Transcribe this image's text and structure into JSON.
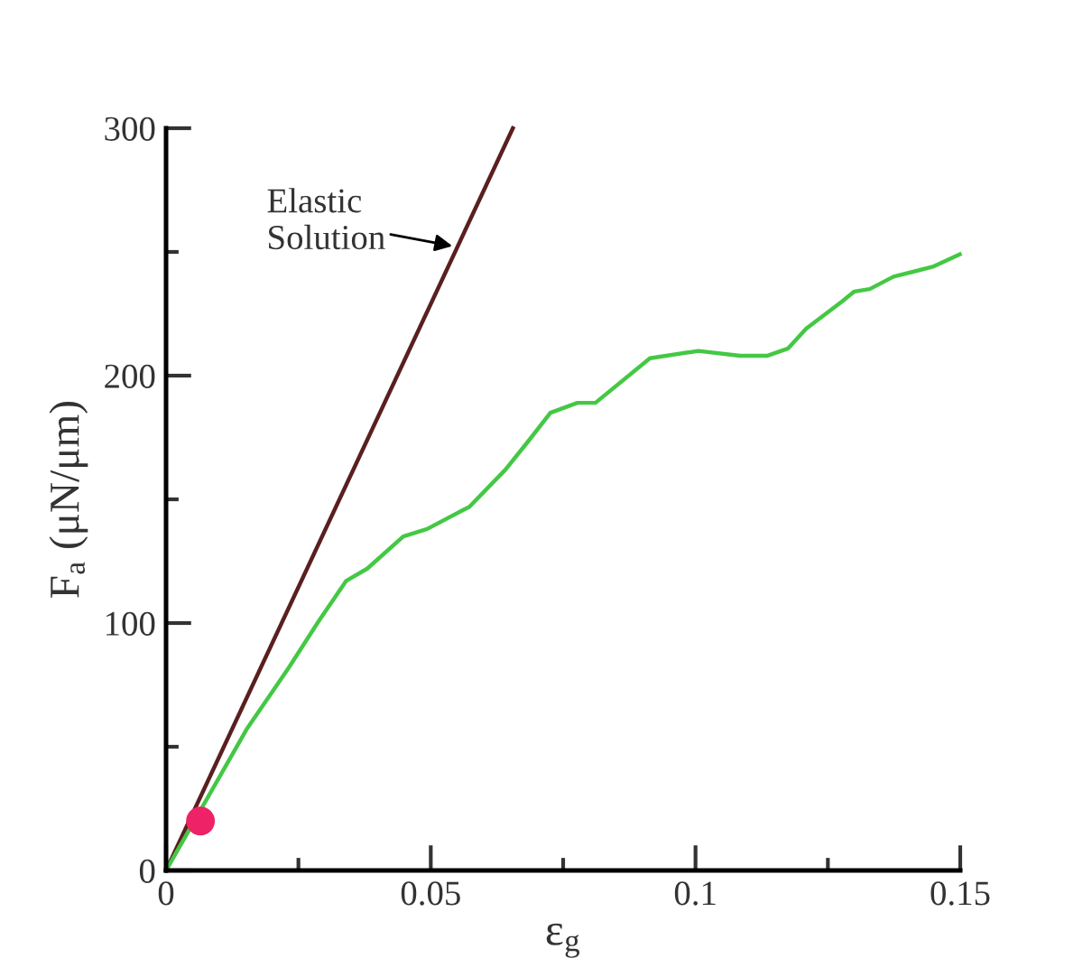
{
  "chart_data": {
    "type": "line",
    "xlabel": "ε$_{g}$",
    "ylabel": "F$_{a}$ (μN/μm)",
    "xlim": [
      0,
      0.15
    ],
    "ylim": [
      0,
      300
    ],
    "xticks": [
      0,
      {
        "value": 0.025,
        "label": null
      },
      0.05,
      {
        "value": 0.075,
        "label": null
      },
      0.1,
      {
        "value": 0.125,
        "label": null
      },
      0.15
    ],
    "yticks": [
      0,
      {
        "value": 50,
        "label": null
      },
      100,
      {
        "value": 150,
        "label": null
      },
      200,
      {
        "value": 250,
        "label": null
      },
      300
    ],
    "grid": false,
    "legend": false,
    "line_style": "solid",
    "annotations": [
      {
        "text": "Elastic\nSolution",
        "x": 0.055,
        "y": 252
      }
    ],
    "series": [
      {
        "color": "#5a1f1f",
        "x": [
          0,
          0.0655
        ],
        "values": [
          0,
          300
        ]
      },
      {
        "color": "#44c844",
        "x": [
          0,
          0.0152,
          0.0232,
          0.0289,
          0.034,
          0.038,
          0.0448,
          0.0493,
          0.0573,
          0.0641,
          0.0686,
          0.0726,
          0.0777,
          0.0811,
          0.0914,
          0.1005,
          0.1084,
          0.1135,
          0.1175,
          0.1209,
          0.1277,
          0.13,
          0.1329,
          0.1374,
          0.1448,
          0.1499
        ],
        "values": [
          0,
          57,
          82,
          101,
          117,
          122,
          135,
          138,
          147,
          162,
          174,
          185,
          189,
          189,
          207,
          210,
          208,
          208,
          211,
          219,
          230,
          234,
          235,
          240,
          244,
          249
        ]
      },
      {
        "type": "scatter",
        "marker": "circle",
        "color": "#ee2266",
        "x": [
          0.0065
        ],
        "values": [
          20
        ]
      }
    ]
  }
}
